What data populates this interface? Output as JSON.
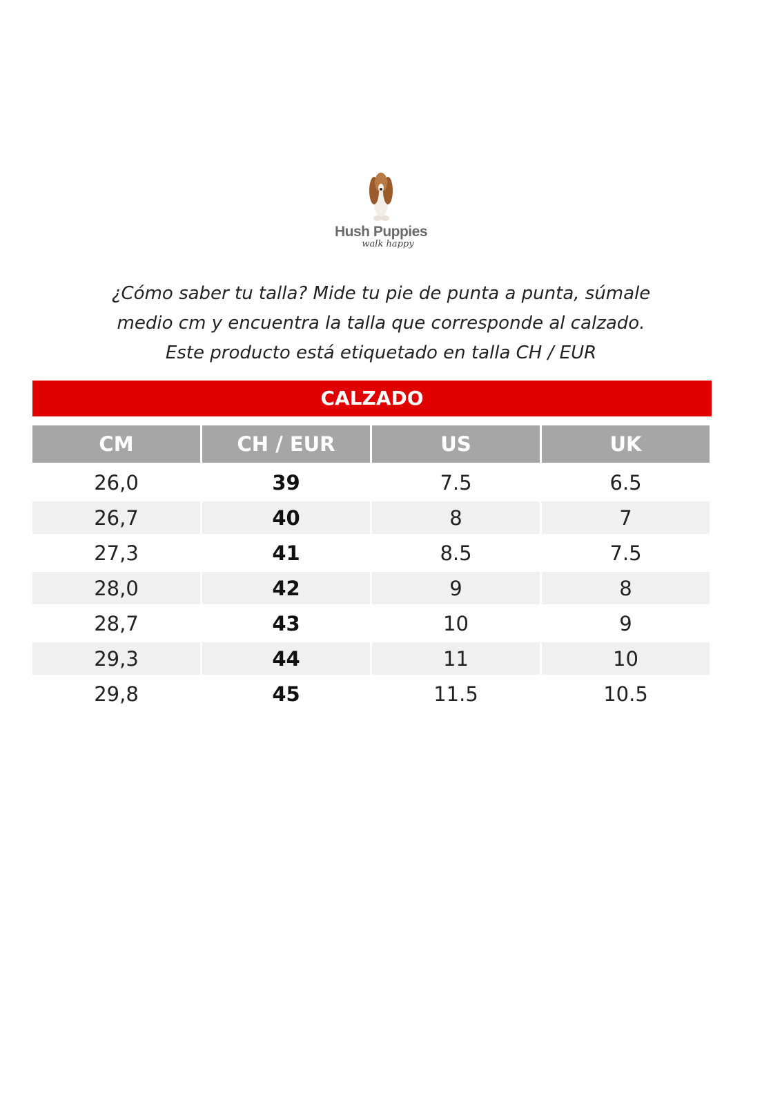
{
  "logo": {
    "brand": "Hush Puppies",
    "tagline": "walk happy"
  },
  "intro": [
    "¿Cómo saber tu talla? Mide tu pie de punta a punta, súmale",
    "medio cm y encuentra la talla que corresponde al calzado.",
    "Este producto está etiquetado en talla CH / EUR"
  ],
  "banner": "CALZADO",
  "colors": {
    "banner": "#e00000",
    "header": "#a6a6a6",
    "stripe": "#f0f0f0"
  },
  "table": {
    "headers": [
      "CM",
      "CH / EUR",
      "US",
      "UK"
    ],
    "rows": [
      [
        "26,0",
        "39",
        "7.5",
        "6.5"
      ],
      [
        "26,7",
        "40",
        "8",
        "7"
      ],
      [
        "27,3",
        "41",
        "8.5",
        "7.5"
      ],
      [
        "28,0",
        "42",
        "9",
        "8"
      ],
      [
        "28,7",
        "43",
        "10",
        "9"
      ],
      [
        "29,3",
        "44",
        "11",
        "10"
      ],
      [
        "29,8",
        "45",
        "11.5",
        "10.5"
      ]
    ]
  }
}
